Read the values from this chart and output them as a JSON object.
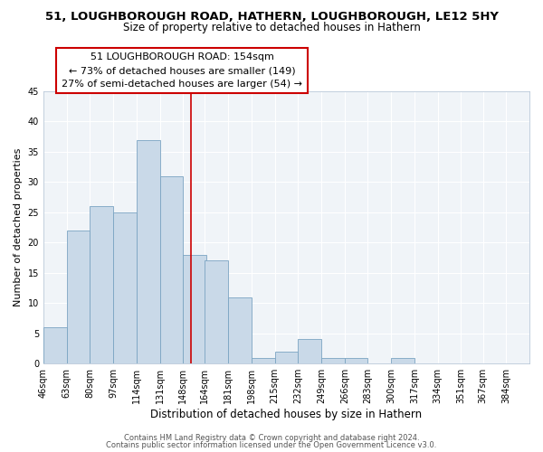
{
  "title": "51, LOUGHBOROUGH ROAD, HATHERN, LOUGHBOROUGH, LE12 5HY",
  "subtitle": "Size of property relative to detached houses in Hathern",
  "xlabel": "Distribution of detached houses by size in Hathern",
  "ylabel": "Number of detached properties",
  "bin_labels": [
    "46sqm",
    "63sqm",
    "80sqm",
    "97sqm",
    "114sqm",
    "131sqm",
    "148sqm",
    "164sqm",
    "181sqm",
    "198sqm",
    "215sqm",
    "232sqm",
    "249sqm",
    "266sqm",
    "283sqm",
    "300sqm",
    "317sqm",
    "334sqm",
    "351sqm",
    "367sqm",
    "384sqm"
  ],
  "bin_edges": [
    46,
    63,
    80,
    97,
    114,
    131,
    148,
    164,
    181,
    198,
    215,
    232,
    249,
    266,
    283,
    300,
    317,
    334,
    351,
    367,
    384
  ],
  "bar_heights": [
    6,
    22,
    26,
    25,
    37,
    31,
    18,
    17,
    11,
    1,
    2,
    4,
    1,
    1,
    0,
    1,
    0,
    0,
    0,
    0,
    0
  ],
  "bar_color": "#c9d9e8",
  "bar_edgecolor": "#7ba4c2",
  "vline_x": 154,
  "vline_color": "#cc0000",
  "annotation_line1": "51 LOUGHBOROUGH ROAD: 154sqm",
  "annotation_line2": "← 73% of detached houses are smaller (149)",
  "annotation_line3": "27% of semi-detached houses are larger (54) →",
  "annotation_box_color": "#cc0000",
  "ylim": [
    0,
    45
  ],
  "yticks": [
    0,
    5,
    10,
    15,
    20,
    25,
    30,
    35,
    40,
    45
  ],
  "bg_color": "#f0f4f8",
  "plot_bg_color": "#eef2f7",
  "footer_line1": "Contains HM Land Registry data © Crown copyright and database right 2024.",
  "footer_line2": "Contains public sector information licensed under the Open Government Licence v3.0.",
  "title_fontsize": 9.5,
  "subtitle_fontsize": 8.5,
  "xlabel_fontsize": 8.5,
  "ylabel_fontsize": 8,
  "tick_fontsize": 7,
  "footer_fontsize": 6,
  "annotation_fontsize": 8
}
